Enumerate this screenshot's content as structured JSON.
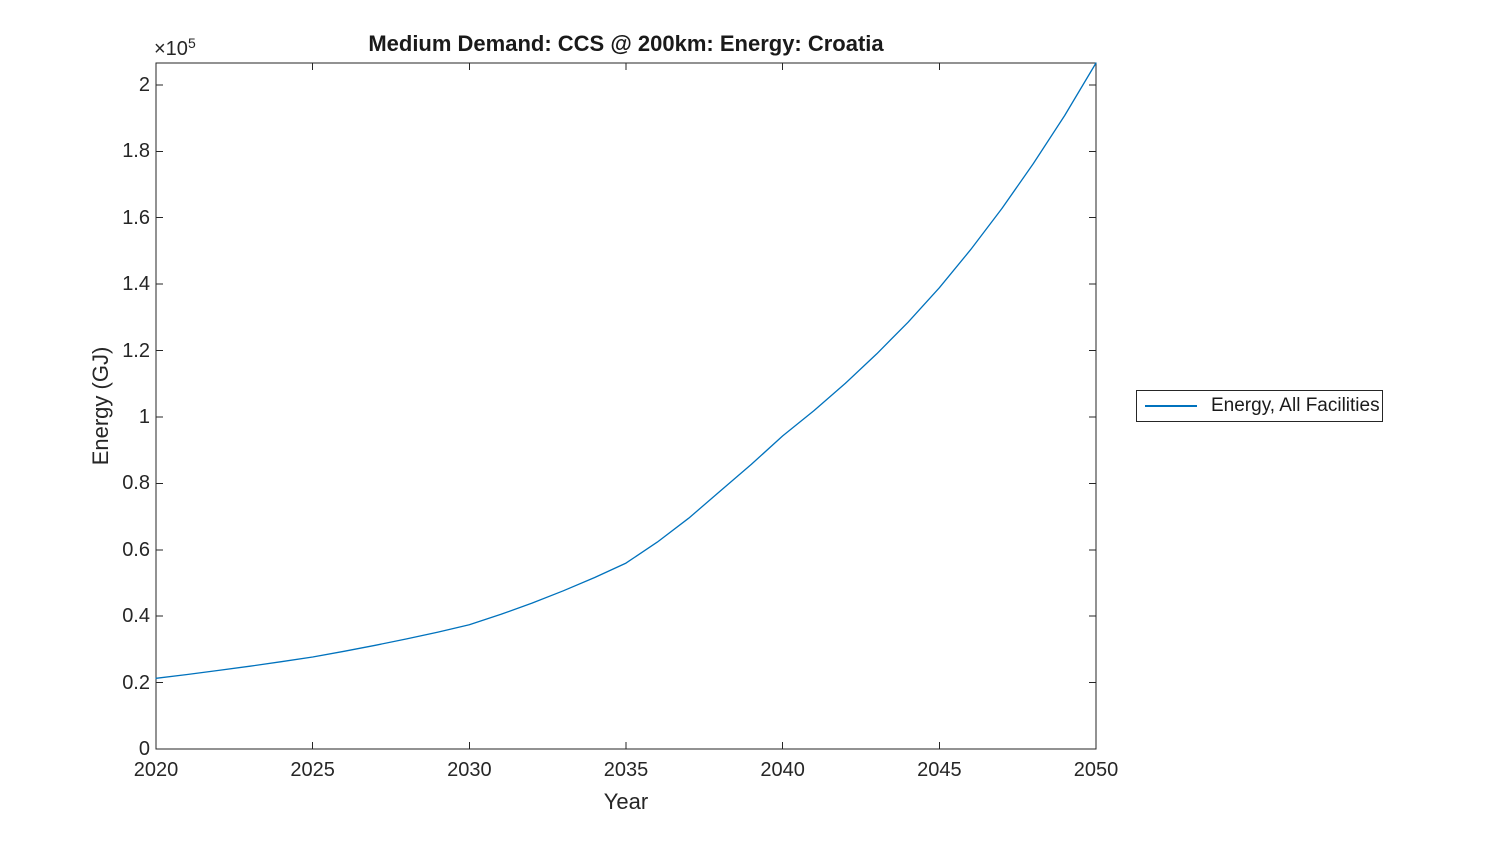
{
  "colors": {
    "line": "#0072BD",
    "axis": "#262626",
    "title_text": "#1a1a1a",
    "background": "#ffffff"
  },
  "chart_data": {
    "type": "line",
    "title": "Medium Demand: CCS @ 200km: Energy: Croatia",
    "xlabel": "Year",
    "ylabel": "Energy (GJ)",
    "y_exponent_base": "×10",
    "y_exponent_power": "5",
    "grid": false,
    "legend_position": "outside-right",
    "xlim": [
      2020,
      2050
    ],
    "ylim": [
      0,
      206600
    ],
    "xticks": {
      "values": [
        2020,
        2025,
        2030,
        2035,
        2040,
        2045,
        2050
      ],
      "labels": [
        "2020",
        "2025",
        "2030",
        "2035",
        "2040",
        "2045",
        "2050"
      ]
    },
    "yticks": {
      "values": [
        0,
        20000,
        40000,
        60000,
        80000,
        100000,
        120000,
        140000,
        160000,
        180000,
        200000
      ],
      "labels": [
        "0",
        "0.2",
        "0.4",
        "0.6",
        "0.8",
        "1",
        "1.2",
        "1.4",
        "1.6",
        "1.8",
        "2"
      ]
    },
    "series": [
      {
        "name": "Energy, All Facilities",
        "color": "#0072BD",
        "x": [
          2020,
          2021,
          2022,
          2023,
          2024,
          2025,
          2026,
          2027,
          2028,
          2029,
          2030,
          2031,
          2032,
          2033,
          2034,
          2035,
          2036,
          2037,
          2038,
          2039,
          2040,
          2041,
          2042,
          2043,
          2044,
          2045,
          2046,
          2047,
          2048,
          2049,
          2050
        ],
        "y": [
          21300,
          22450,
          23660,
          24940,
          26280,
          27700,
          29410,
          31240,
          33170,
          35220,
          37400,
          40550,
          43950,
          47650,
          51660,
          56000,
          62300,
          69500,
          77600,
          85700,
          94300,
          101900,
          110100,
          119000,
          128500,
          138900,
          150400,
          162800,
          176300,
          190800,
          206600
        ]
      }
    ]
  },
  "legend": {
    "items": [
      {
        "label": "Energy, All Facilities"
      }
    ]
  }
}
